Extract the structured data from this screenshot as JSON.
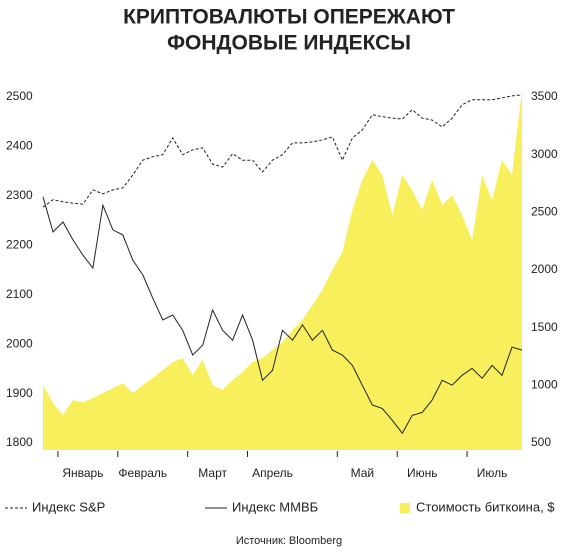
{
  "chart_data": {
    "type": "line",
    "title": [
      "КРИПТОВАЛЮТЫ ОПЕРЕЖАЮТ",
      "ФОНДОВЫЕ ИНДЕКСЫ"
    ],
    "source": "Источник: Bloomberg",
    "categories": [
      null,
      null,
      null,
      null,
      "Январь",
      null,
      null,
      null,
      null,
      null,
      "Февраль",
      null,
      null,
      null,
      null,
      null,
      null,
      "Март",
      null,
      null,
      null,
      null,
      null,
      "Апрель",
      null,
      null,
      null,
      null,
      null,
      null,
      null,
      null,
      "Май",
      null,
      null,
      null,
      null,
      null,
      "Июнь",
      null,
      null,
      null,
      null,
      null,
      null,
      "Июль",
      null,
      null,
      null
    ],
    "series": [
      {
        "name": "Индекс S&P",
        "color": "#222222",
        "style": "dashed",
        "values": [
          2277,
          2292,
          2288,
          2285,
          2283,
          2312,
          2304,
          2312,
          2316,
          2342,
          2372,
          2379,
          2383,
          2417,
          2383,
          2393,
          2397,
          2364,
          2358,
          2385,
          2372,
          2372,
          2348,
          2372,
          2383,
          2407,
          2407,
          2409,
          2413,
          2419,
          2372,
          2417,
          2433,
          2464,
          2460,
          2457,
          2455,
          2474,
          2457,
          2453,
          2439,
          2457,
          2484,
          2494,
          2494,
          2494,
          2498,
          2502,
          2504
        ]
      },
      {
        "name": "Индекс ММВБ",
        "color": "#222222",
        "style": "solid",
        "values": [
          2298,
          2227,
          2247,
          2211,
          2180,
          2154,
          2281,
          2231,
          2221,
          2170,
          2140,
          2093,
          2049,
          2059,
          2028,
          1978,
          1998,
          2069,
          2028,
          2008,
          2059,
          2008,
          1927,
          1947,
          2028,
          2008,
          2039,
          2008,
          2028,
          1988,
          1978,
          1957,
          1917,
          1877,
          1870,
          1846,
          1820,
          1856,
          1862,
          1887,
          1927,
          1917,
          1937,
          1951,
          1931,
          1957,
          1937,
          1994,
          1988
        ]
      },
      {
        "name": "Стоимость биткоина, $",
        "color": "#f7ef5b",
        "style": "area",
        "axis": "y2",
        "values": [
          1002,
          846,
          742,
          872,
          854,
          889,
          933,
          976,
          1019,
          933,
          1002,
          1063,
          1132,
          1202,
          1236,
          1089,
          1219,
          1002,
          959,
          1045,
          1115,
          1202,
          1236,
          1306,
          1375,
          1479,
          1566,
          1696,
          1826,
          2000,
          2156,
          2520,
          2780,
          2954,
          2823,
          2477,
          2823,
          2693,
          2520,
          2780,
          2563,
          2650,
          2477,
          2260,
          2823,
          2606,
          2954,
          2823,
          3561
        ]
      }
    ],
    "ylim": [
      1786,
      2524
    ],
    "yticks": [
      1800,
      1900,
      2000,
      2100,
      2200,
      2300,
      2400,
      2500
    ],
    "y2lim": [
      439,
      3604
    ],
    "y2ticks": [
      500,
      1000,
      1500,
      2000,
      2500,
      3000,
      3500
    ]
  }
}
